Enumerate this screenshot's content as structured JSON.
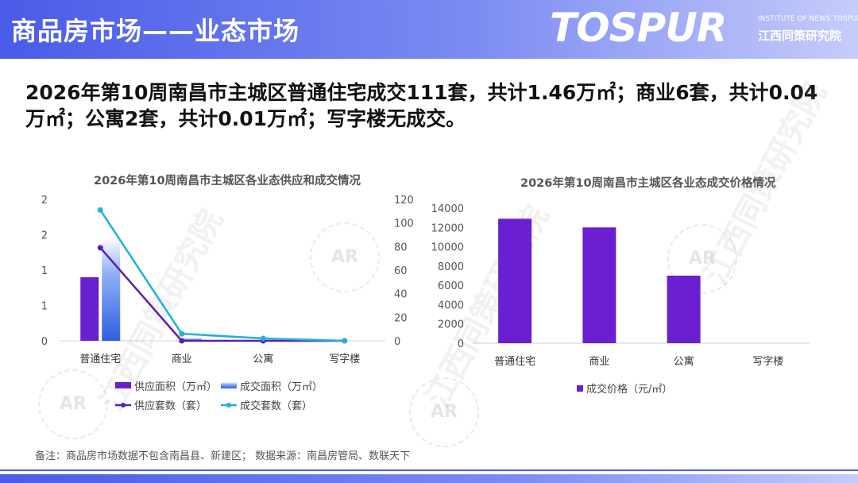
{
  "header": {
    "title": "商品房市场——业态市场",
    "logo": {
      "main": "TOSPUR",
      "sub_en": "INSTITUTE OF NEWS TOSPUR",
      "sub_cn": "江西同策研究院"
    }
  },
  "headline": "2026年第10周南昌市主城区普通住宅成交111套，共计1.46万㎡；商业6套，共计0.04万㎡；公寓2套，共计0.01万㎡；写字楼无成交。",
  "watermark": {
    "text": "江西同策研究院",
    "seal": "AR"
  },
  "chart_data": [
    {
      "type": "bar",
      "title": "2026年第10周南昌市主城区各业态供应和成交情况",
      "categories": [
        "普通住宅",
        "商业",
        "公寓",
        "写字楼"
      ],
      "y_left": {
        "range": [
          0,
          2
        ],
        "ticks": [
          "2",
          "2",
          "1",
          "1",
          "0"
        ]
      },
      "y_right": {
        "range": [
          0,
          120
        ],
        "ticks": [
          "120",
          "100",
          "80",
          "60",
          "40",
          "20",
          "0"
        ]
      },
      "series": [
        {
          "name": "供应面积（万㎡）",
          "kind": "bar",
          "axis": "left",
          "color": "#6a1fd0",
          "values": [
            0.9,
            0,
            0,
            0
          ]
        },
        {
          "name": "成交面积（万㎡）",
          "kind": "bar",
          "axis": "left",
          "color": "#3f72e6",
          "values": [
            1.46,
            0.04,
            0.01,
            0
          ]
        },
        {
          "name": "供应套数（套）",
          "kind": "line",
          "axis": "right",
          "color": "#5a1fb0",
          "values": [
            79,
            0,
            0,
            0
          ]
        },
        {
          "name": "成交套数（套）",
          "kind": "line",
          "axis": "right",
          "color": "#1fb2d8",
          "values": [
            111,
            6,
            2,
            0
          ]
        }
      ],
      "legend_position": "bottom"
    },
    {
      "type": "bar",
      "title": "2026年第10周南昌市主城区各业态成交价格情况",
      "categories": [
        "普通住宅",
        "商业",
        "公寓",
        "写字楼"
      ],
      "y": {
        "range": [
          0,
          14000
        ],
        "ticks": [
          "14000",
          "12000",
          "10000",
          "8000",
          "6000",
          "4000",
          "2000",
          "0"
        ]
      },
      "series": [
        {
          "name": "成交价格（元/㎡）",
          "color": "#6a1fd0",
          "values": [
            12900,
            12000,
            7000,
            0
          ]
        }
      ],
      "legend_position": "bottom"
    }
  ],
  "footer": {
    "note": "备注：商品房市场数据不包含南昌县、新建区； 数据来源：南昌房管局、数联天下"
  }
}
